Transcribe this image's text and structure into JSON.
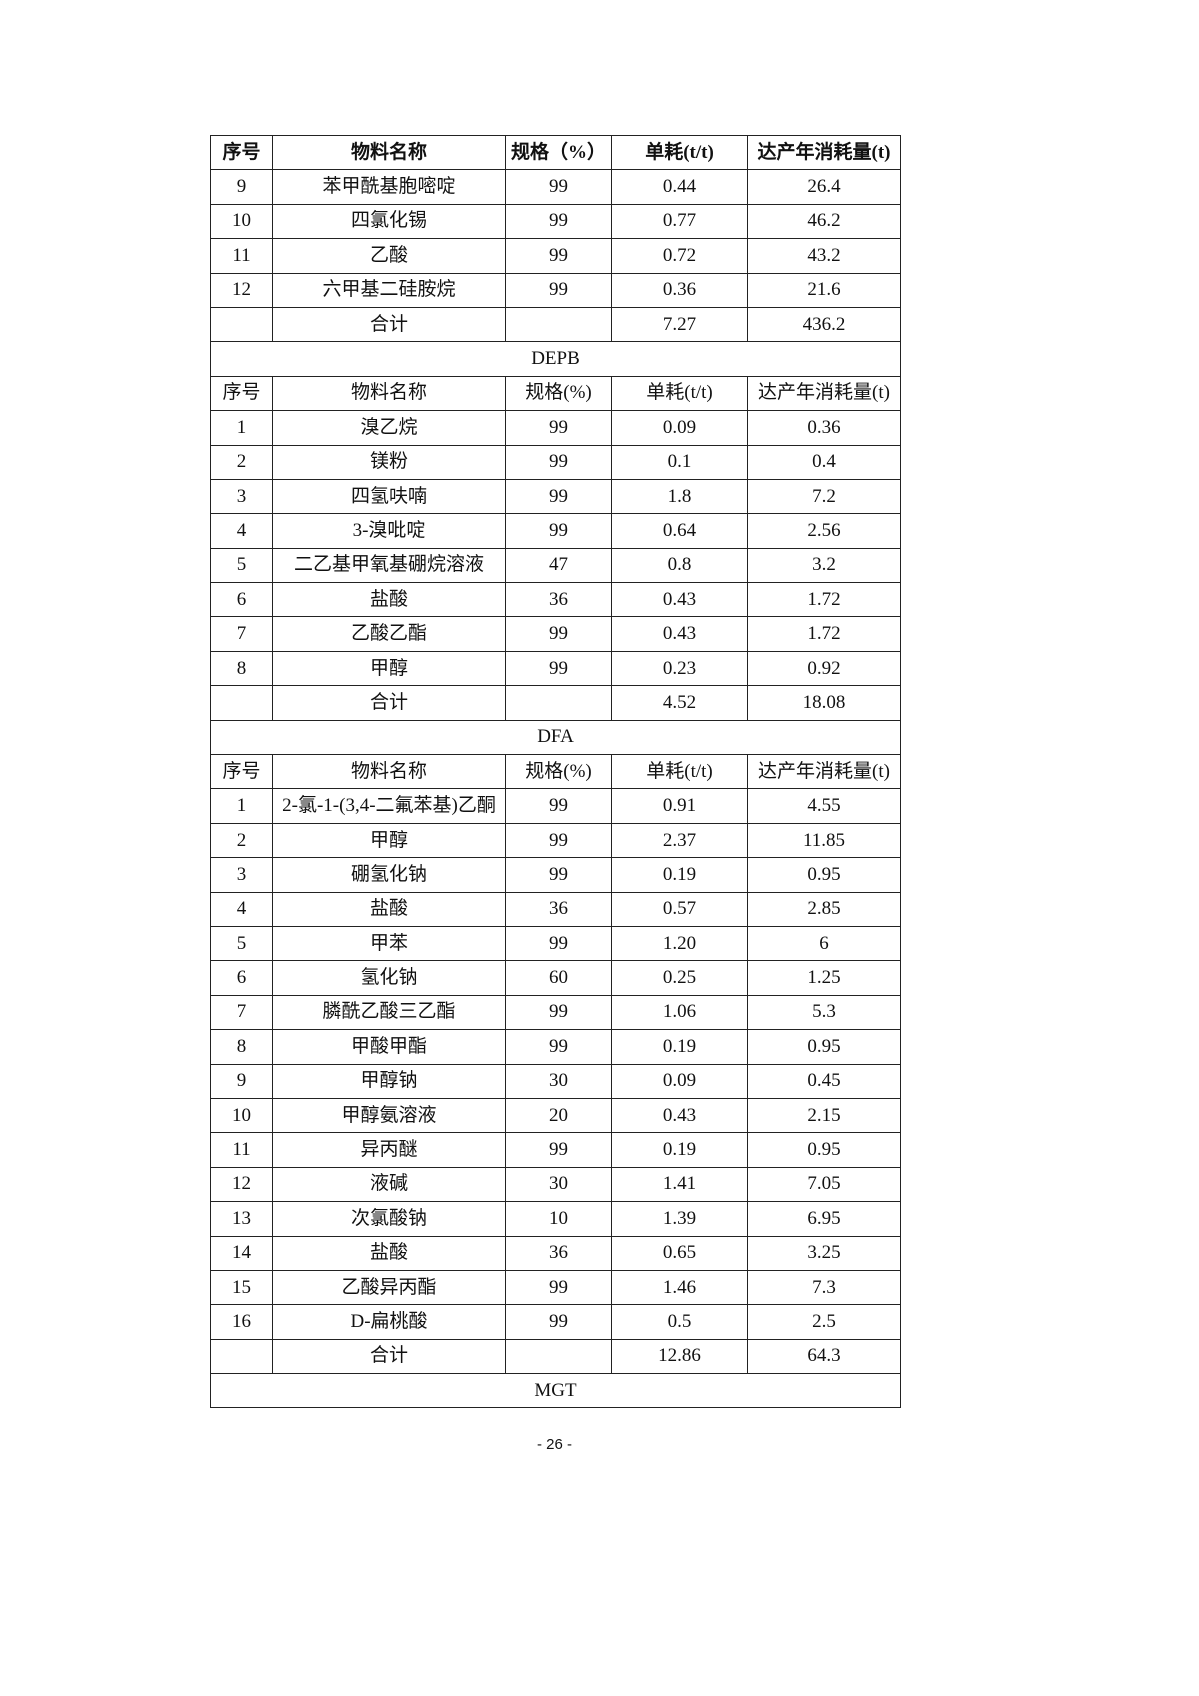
{
  "first_header": [
    "序号",
    "物料名称",
    "规格（%）",
    "单耗(t/t)",
    "达产年消耗量(t)"
  ],
  "first_rows": [
    [
      "9",
      "苯甲酰基胞嘧啶",
      "99",
      "0.44",
      "26.4"
    ],
    [
      "10",
      "四氯化锡",
      "99",
      "0.77",
      "46.2"
    ],
    [
      "11",
      "乙酸",
      "99",
      "0.72",
      "43.2"
    ],
    [
      "12",
      "六甲基二硅胺烷",
      "99",
      "0.36",
      "21.6"
    ],
    [
      "",
      "合计",
      "",
      "7.27",
      "436.2"
    ]
  ],
  "sections": [
    {
      "title": "DEPB",
      "header": [
        "序号",
        "物料名称",
        "规格(%)",
        "单耗(t/t)",
        "达产年消耗量(t)"
      ],
      "rows": [
        [
          "1",
          "溴乙烷",
          "99",
          "0.09",
          "0.36"
        ],
        [
          "2",
          "镁粉",
          "99",
          "0.1",
          "0.4"
        ],
        [
          "3",
          "四氢呋喃",
          "99",
          "1.8",
          "7.2"
        ],
        [
          "4",
          "3-溴吡啶",
          "99",
          "0.64",
          "2.56"
        ],
        [
          "5",
          "二乙基甲氧基硼烷溶液",
          "47",
          "0.8",
          "3.2"
        ],
        [
          "6",
          "盐酸",
          "36",
          "0.43",
          "1.72"
        ],
        [
          "7",
          "乙酸乙酯",
          "99",
          "0.43",
          "1.72"
        ],
        [
          "8",
          "甲醇",
          "99",
          "0.23",
          "0.92"
        ],
        [
          "",
          "合计",
          "",
          "4.52",
          "18.08"
        ]
      ]
    },
    {
      "title": "DFA",
      "header": [
        "序号",
        "物料名称",
        "规格(%)",
        "单耗(t/t)",
        "达产年消耗量(t)"
      ],
      "rows": [
        [
          "1",
          "2-氯-1-(3,4-二氟苯基)乙酮",
          "99",
          "0.91",
          "4.55"
        ],
        [
          "2",
          "甲醇",
          "99",
          "2.37",
          "11.85"
        ],
        [
          "3",
          "硼氢化钠",
          "99",
          "0.19",
          "0.95"
        ],
        [
          "4",
          "盐酸",
          "36",
          "0.57",
          "2.85"
        ],
        [
          "5",
          "甲苯",
          "99",
          "1.20",
          "6"
        ],
        [
          "6",
          "氢化钠",
          "60",
          "0.25",
          "1.25"
        ],
        [
          "7",
          "膦酰乙酸三乙酯",
          "99",
          "1.06",
          "5.3"
        ],
        [
          "8",
          "甲酸甲酯",
          "99",
          "0.19",
          "0.95"
        ],
        [
          "9",
          "甲醇钠",
          "30",
          "0.09",
          "0.45"
        ],
        [
          "10",
          "甲醇氨溶液",
          "20",
          "0.43",
          "2.15"
        ],
        [
          "11",
          "异丙醚",
          "99",
          "0.19",
          "0.95"
        ],
        [
          "12",
          "液碱",
          "30",
          "1.41",
          "7.05"
        ],
        [
          "13",
          "次氯酸钠",
          "10",
          "1.39",
          "6.95"
        ],
        [
          "14",
          "盐酸",
          "36",
          "0.65",
          "3.25"
        ],
        [
          "15",
          "乙酸异丙酯",
          "99",
          "1.46",
          "7.3"
        ],
        [
          "16",
          "D-扁桃酸",
          "99",
          "0.5",
          "2.5"
        ],
        [
          "",
          "合计",
          "",
          "12.86",
          "64.3"
        ]
      ]
    },
    {
      "title": "MGT",
      "header": null,
      "rows": []
    }
  ],
  "page_number": "- 26 -"
}
